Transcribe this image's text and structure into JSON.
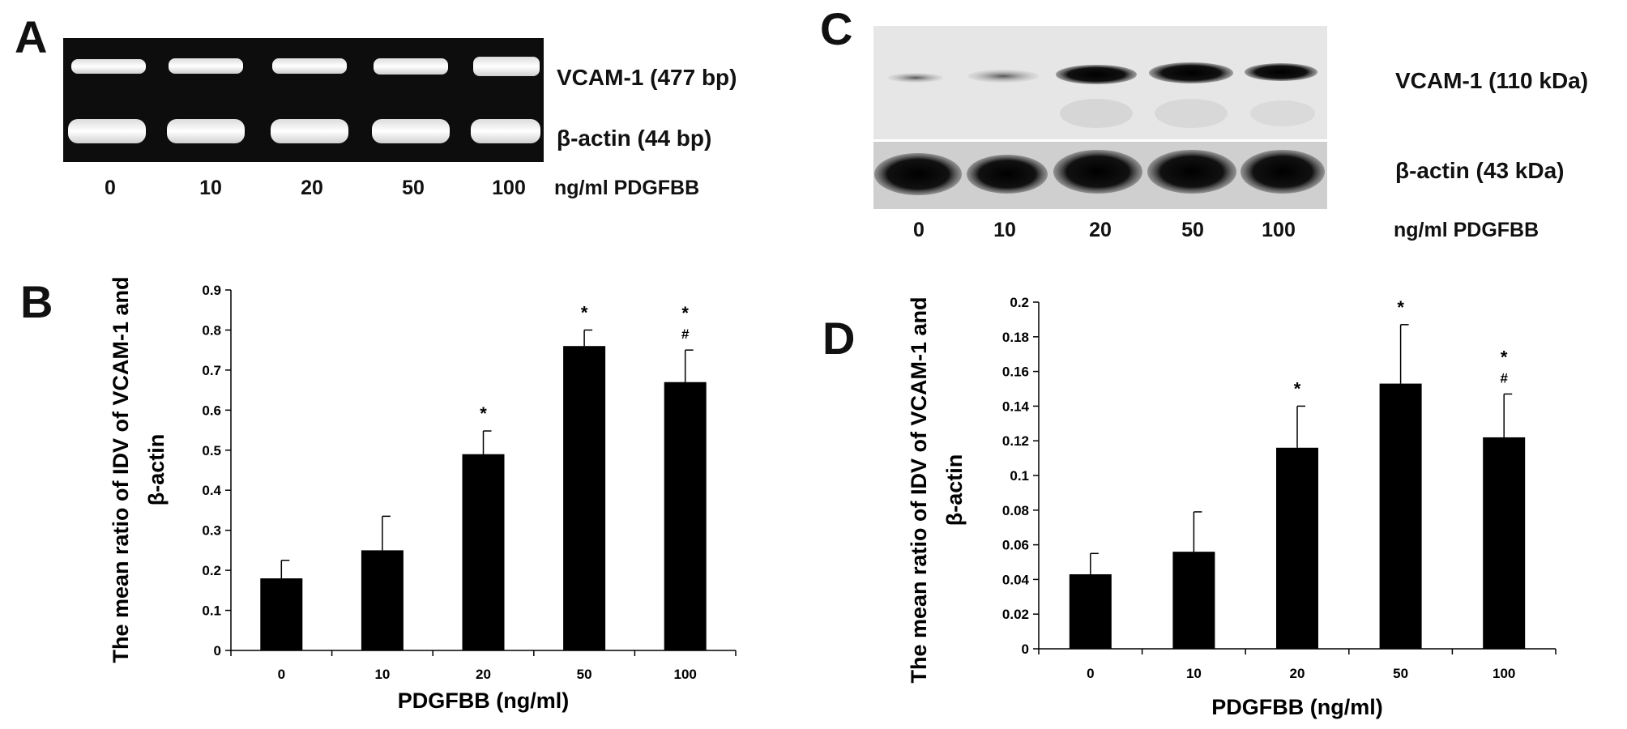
{
  "panels": {
    "A": {
      "letter": "A",
      "band_labels": [
        "VCAM-1 (477 bp)",
        "β-actin (44 bp)"
      ],
      "lanes": [
        "0",
        "10",
        "20",
        "50",
        "100"
      ],
      "unit": "ng/ml PDGFBB"
    },
    "C": {
      "letter": "C",
      "band_labels": [
        "VCAM-1 (110 kDa)",
        "β-actin (43 kDa)"
      ],
      "lanes": [
        "0",
        "10",
        "20",
        "50",
        "100"
      ],
      "unit": "ng/ml PDGFBB"
    },
    "B": {
      "letter": "B"
    },
    "D": {
      "letter": "D"
    }
  },
  "chart_data": [
    {
      "panel": "B",
      "type": "bar",
      "categories": [
        "0",
        "10",
        "20",
        "50",
        "100"
      ],
      "values": [
        0.18,
        0.25,
        0.49,
        0.76,
        0.67
      ],
      "errors": [
        0.045,
        0.085,
        0.058,
        0.04,
        0.08
      ],
      "annotations": [
        "",
        "",
        "*",
        "*",
        "*\n#"
      ],
      "xlabel": "PDGFBB (ng/ml)",
      "ylabel": "The mean ratio of IDV of VCAM-1 and β-actin",
      "ylim": [
        0,
        0.9
      ],
      "yticks": [
        "0",
        "0.1",
        "0.2",
        "0.3",
        "0.4",
        "0.5",
        "0.6",
        "0.7",
        "0.8",
        "0.9"
      ],
      "bar_color": "#000000",
      "grid": false
    },
    {
      "panel": "D",
      "type": "bar",
      "categories": [
        "0",
        "10",
        "20",
        "50",
        "100"
      ],
      "values": [
        0.043,
        0.056,
        0.116,
        0.153,
        0.122
      ],
      "errors": [
        0.012,
        0.023,
        0.024,
        0.034,
        0.025
      ],
      "annotations": [
        "",
        "",
        "*",
        "*",
        "*\n#"
      ],
      "xlabel": "PDGFBB (ng/ml)",
      "ylabel": "The mean ratio of IDV of VCAM-1 and β-actin",
      "ylim": [
        0,
        0.2
      ],
      "yticks": [
        "0",
        "0.02",
        "0.04",
        "0.06",
        "0.08",
        "0.1",
        "0.12",
        "0.14",
        "0.16",
        "0.18",
        "0.2"
      ],
      "bar_color": "#000000",
      "grid": false
    }
  ]
}
